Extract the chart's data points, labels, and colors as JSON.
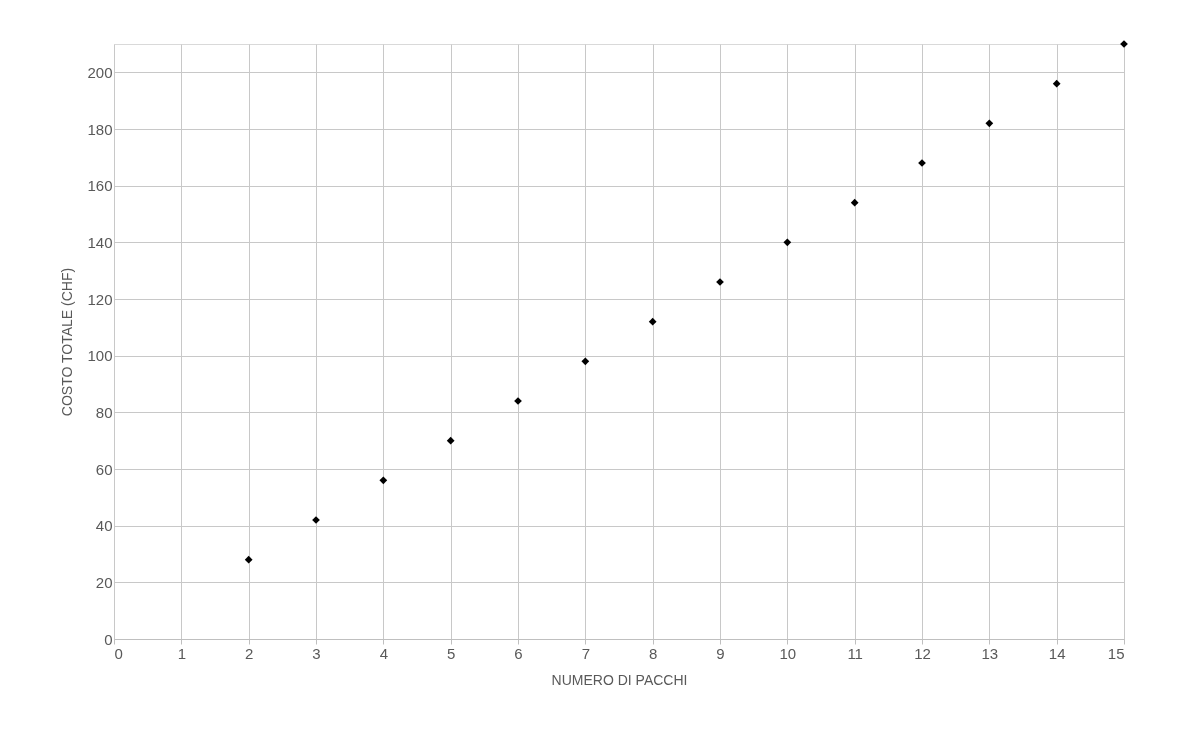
{
  "chart_data": {
    "type": "scatter",
    "xlabel": "NUMERO DI PACCHI",
    "ylabel": "COSTO TOTALE (CHF)",
    "x": [
      2,
      3,
      4,
      5,
      6,
      7,
      8,
      9,
      10,
      11,
      12,
      13,
      14,
      15
    ],
    "series": [
      {
        "color": "#000000",
        "values": [
          28,
          42,
          56,
          70,
          84,
          98,
          112,
          126,
          140,
          154,
          168,
          182,
          196,
          210
        ]
      }
    ],
    "xlim": [
      0,
      15
    ],
    "xticks": [
      0,
      1,
      2,
      3,
      4,
      5,
      6,
      7,
      8,
      9,
      10,
      11,
      12,
      13,
      14,
      15
    ],
    "ylim": [
      0,
      210
    ],
    "yticks": [
      0,
      20,
      40,
      60,
      80,
      100,
      120,
      140,
      160,
      180,
      200
    ],
    "grid": true,
    "marker": "diamond",
    "legend": false
  }
}
